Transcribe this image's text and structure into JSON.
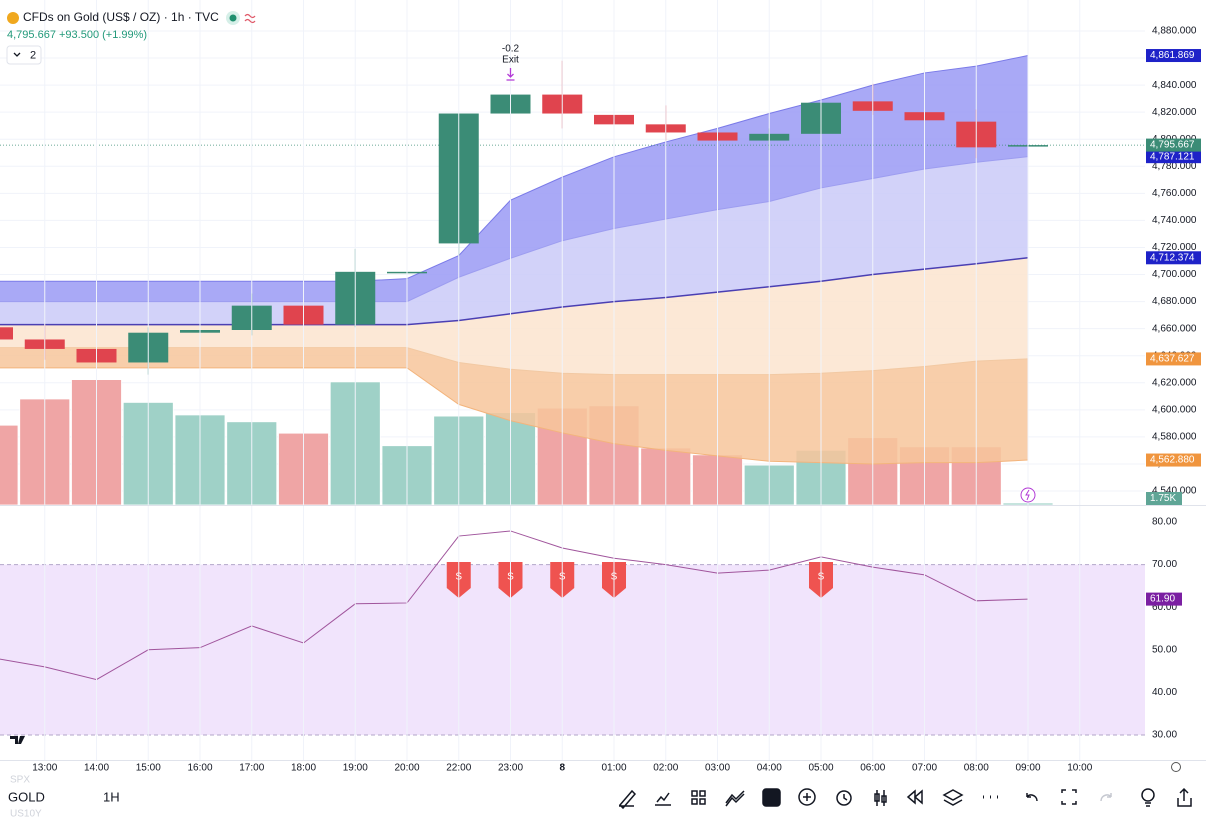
{
  "header": {
    "symbol": "CFDs on Gold (US$ / OZ) · 1h · TVC",
    "price": "4,795.667",
    "change": "+93.500 (+1.99%)",
    "layout_count": "2"
  },
  "chart_data": {
    "type": "candlestick",
    "categories": [
      null,
      "13:00",
      "14:00",
      "15:00",
      "16:00",
      "17:00",
      "18:00",
      "19:00",
      "20:00",
      "22:00",
      "23:00",
      "8",
      "01:00",
      "02:00",
      "03:00",
      "04:00",
      "05:00",
      "06:00",
      "07:00",
      "08:00",
      "09:00",
      "10:00"
    ],
    "candles": {
      "open": [
        4661,
        4652,
        4645,
        4635,
        4657,
        4659,
        4677,
        4663,
        4701,
        4723,
        4819,
        4833,
        4818,
        4811,
        4805,
        4799,
        4804,
        4828,
        4820,
        4813,
        4795,
        null
      ],
      "high": [
        4663,
        4663,
        4663,
        4661,
        4668,
        4686,
        4686,
        4719,
        4718,
        4819,
        4835,
        4858,
        4826,
        4825,
        4805,
        4808,
        4844,
        4841,
        4822,
        4822,
        4796,
        null
      ],
      "low": [
        4650,
        4637,
        4609,
        4626,
        4655,
        4655,
        4659,
        4661,
        4695,
        4714,
        4802,
        4808,
        4788,
        4799,
        4797,
        4792,
        4800,
        4818,
        4806,
        4786,
        4795,
        null
      ],
      "close": [
        4652,
        4645,
        4635,
        4657,
        4659,
        4677,
        4663,
        4702,
        4702,
        4819,
        4833,
        4819,
        4811,
        4805,
        4799,
        4804,
        4827,
        4821,
        4814,
        4794,
        4795.667,
        null
      ],
      "up_color": "#3b8c76",
      "down_color": "#e0444e",
      "price_label": "4,795.667"
    },
    "volume": {
      "values": [
        70,
        93,
        110,
        90,
        79,
        73,
        63,
        108,
        52,
        78,
        81,
        85,
        87,
        50,
        44,
        35,
        48,
        59,
        51,
        51,
        1.75,
        null
      ],
      "value_labels": [
        null,
        null,
        null,
        null,
        null,
        null,
        null,
        null,
        null,
        null,
        null,
        null,
        null,
        null,
        null,
        null,
        null,
        null,
        null,
        null,
        "1.75K",
        null
      ],
      "ylim": [
        0,
        150
      ],
      "up_color": "#9fd1c7",
      "down_color": "#efa5a5",
      "label_color": "#5fa596"
    },
    "bands": [
      {
        "color": "#7a7ae8",
        "values": [
          4695,
          4695,
          4695,
          4695,
          4695,
          4695,
          4695,
          4695,
          4697,
          4714,
          4755,
          4772,
          4787,
          4798,
          4808,
          4819,
          4829,
          4840,
          4849,
          4854,
          4861.869,
          null
        ],
        "last_label": "4,861.869",
        "badge_color": "#1e22c8"
      },
      {
        "color": "#9d9df0",
        "values": [
          4680,
          4680,
          4680,
          4680,
          4680,
          4680,
          4680,
          4680,
          4680,
          4698,
          4712,
          4725,
          4734,
          4741,
          4748,
          4754,
          4764,
          4771,
          4778,
          4783,
          4787.121,
          null
        ],
        "last_label": "4,787.121",
        "badge_color": "#1e22c8"
      },
      {
        "color": "#4a3fb3",
        "values": [
          4663,
          4663,
          4663,
          4663,
          4663,
          4663,
          4663,
          4663,
          4663,
          4666,
          4671,
          4676,
          4680,
          4683,
          4687,
          4691,
          4695,
          4700,
          4704,
          4708,
          4712.374,
          null
        ],
        "last_label": "4,712.374",
        "badge_color": "#1e22c8"
      },
      {
        "color": "#f2c9a3",
        "values": [
          4646,
          4646,
          4646,
          4646,
          4646,
          4646,
          4646,
          4646,
          4646,
          4635,
          4630,
          4627,
          4626,
          4626,
          4626,
          4626,
          4627,
          4629,
          4632,
          4636,
          4637.627,
          null
        ],
        "last_label": "4,637.627",
        "badge_color": "#f0953e"
      },
      {
        "color": "#f3b47c",
        "values": [
          4631,
          4631,
          4631,
          4631,
          4631,
          4631,
          4631,
          4631,
          4631,
          4604,
          4592,
          4583,
          4575,
          4570,
          4566,
          4562,
          4561,
          4560,
          4561,
          4561,
          4562.88,
          null
        ],
        "last_label": "4,562.880",
        "badge_color": "#f0953e"
      }
    ],
    "band_fills": [
      "#9a9af4",
      "#cacaf8",
      "#fbe4cf",
      "#f7c69b"
    ],
    "ylim": [
      4533,
      4903
    ],
    "yticks": [
      {
        "value": 4880,
        "label": "4,880.000"
      },
      {
        "value": 4860,
        "label": "4,860.000"
      },
      {
        "value": 4840,
        "label": "4,840.000"
      },
      {
        "value": 4820,
        "label": "4,820.000"
      },
      {
        "value": 4800,
        "label": "4,800.000"
      },
      {
        "value": 4780,
        "label": "4,780.000"
      },
      {
        "value": 4760,
        "label": "4,760.000"
      },
      {
        "value": 4740,
        "label": "4,740.000"
      },
      {
        "value": 4720,
        "label": "4,720.000"
      },
      {
        "value": 4700,
        "label": "4,700.000"
      },
      {
        "value": 4680,
        "label": "4,680.000"
      },
      {
        "value": 4660,
        "label": "4,660.000"
      },
      {
        "value": 4640,
        "label": "4,640.000"
      },
      {
        "value": 4620,
        "label": "4,620.000"
      },
      {
        "value": 4600,
        "label": "4,600.000"
      },
      {
        "value": 4580,
        "label": "4,580.000"
      },
      {
        "value": 4560,
        "label": "4,560.000"
      },
      {
        "value": 4540,
        "label": "4,540.000"
      }
    ],
    "annotation": {
      "value": "-0.2",
      "label": "Exit",
      "index": 10
    },
    "rsi": {
      "color": "#a0559c",
      "values": [
        48.1,
        46,
        43,
        50,
        50.5,
        55.6,
        51.6,
        60.8,
        61,
        76.7,
        77.9,
        73.9,
        71.5,
        70,
        68,
        68.7,
        71.8,
        69.4,
        67.6,
        61.5,
        61.9,
        null
      ],
      "last_label": "61.90",
      "badge_color": "#7b1fa2",
      "ylim": [
        26.6,
        84
      ],
      "band": [
        30,
        70
      ],
      "band_color": "#f1e4fc",
      "yticks": [
        {
          "value": 80,
          "label": "80.00"
        },
        {
          "value": 70,
          "label": "70.00"
        },
        {
          "value": 60,
          "label": "60.00"
        },
        {
          "value": 50,
          "label": "50.00"
        },
        {
          "value": 40,
          "label": "40.00"
        },
        {
          "value": 30,
          "label": "30.00"
        }
      ],
      "signals": [
        null,
        null,
        null,
        null,
        null,
        null,
        null,
        null,
        null,
        "S",
        "S",
        "S",
        "S",
        null,
        null,
        null,
        "S",
        null,
        null,
        null,
        null,
        null
      ],
      "signal_color": "#ef5350"
    },
    "grid": true
  },
  "toolbar": {
    "symbol": "GOLD",
    "interval": "1H",
    "watchlist": [
      "SPX",
      "US10Y"
    ]
  }
}
